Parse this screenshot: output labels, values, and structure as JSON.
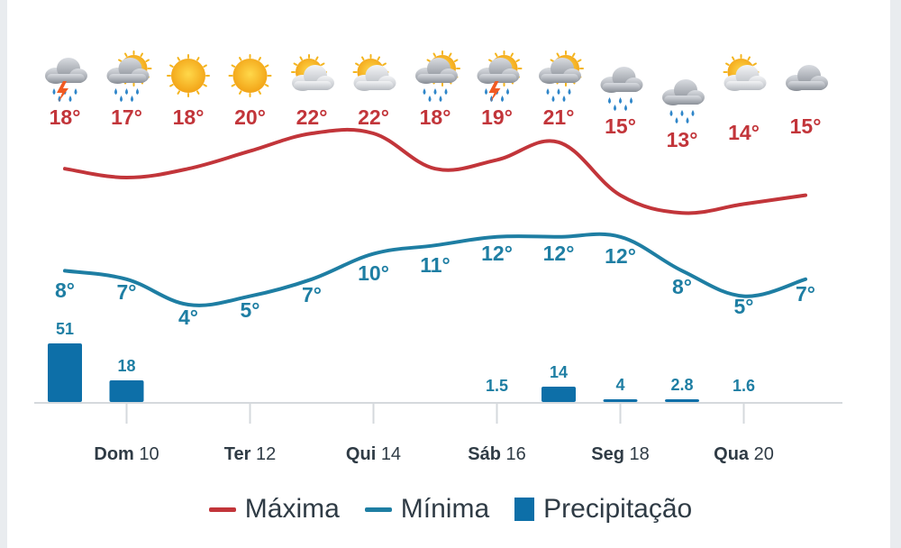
{
  "chart_data": {
    "type": "line",
    "days": [
      {
        "max": 18,
        "min": 8,
        "precip": "51",
        "icon": "thunderstorm-rain-icon"
      },
      {
        "max": 17,
        "min": 7,
        "precip": "18",
        "icon": "sun-cloud-rain-icon"
      },
      {
        "max": 18,
        "min": 4,
        "precip": "",
        "icon": "sun-icon"
      },
      {
        "max": 20,
        "min": 5,
        "precip": "",
        "icon": "sun-icon"
      },
      {
        "max": 22,
        "min": 7,
        "precip": "",
        "icon": "sun-behind-cloud-icon"
      },
      {
        "max": 22,
        "min": 10,
        "precip": "",
        "icon": "sun-behind-cloud-icon"
      },
      {
        "max": 18,
        "min": 11,
        "precip": "",
        "icon": "sun-cloud-rain-icon"
      },
      {
        "max": 19,
        "min": 12,
        "precip": "1.5",
        "icon": "sun-thunderstorm-rain-icon"
      },
      {
        "max": 21,
        "min": 12,
        "precip": "14",
        "icon": "sun-cloud-rain-icon"
      },
      {
        "max": 15,
        "min": 12,
        "precip": "4",
        "icon": "cloud-rain-icon"
      },
      {
        "max": 13,
        "min": 8,
        "precip": "2.8",
        "icon": "cloud-rain-icon"
      },
      {
        "max": 14,
        "min": 5,
        "precip": "1.6",
        "icon": "sun-behind-cloud-icon"
      },
      {
        "max": 15,
        "min": 7,
        "precip": "",
        "icon": "cloud-icon"
      }
    ],
    "x_ticks": [
      {
        "day": "Dom",
        "num": "10"
      },
      {
        "day": "Ter",
        "num": "12"
      },
      {
        "day": "Qui",
        "num": "14"
      },
      {
        "day": "Sáb",
        "num": "16"
      },
      {
        "day": "Seg",
        "num": "18"
      },
      {
        "day": "Qua",
        "num": "20"
      }
    ],
    "legend": [
      {
        "label": "Máxima",
        "color": "#c2353a",
        "kind": "line"
      },
      {
        "label": "Mínima",
        "color": "#1e7ea3",
        "kind": "line"
      },
      {
        "label": "Precipitação",
        "color": "#0d6fa8",
        "kind": "box"
      }
    ],
    "colors": {
      "max": "#c2353a",
      "min": "#1e7ea3",
      "precip": "#0d6fa8",
      "axis": "#d5d9dd",
      "text": "#2f3b45"
    }
  }
}
